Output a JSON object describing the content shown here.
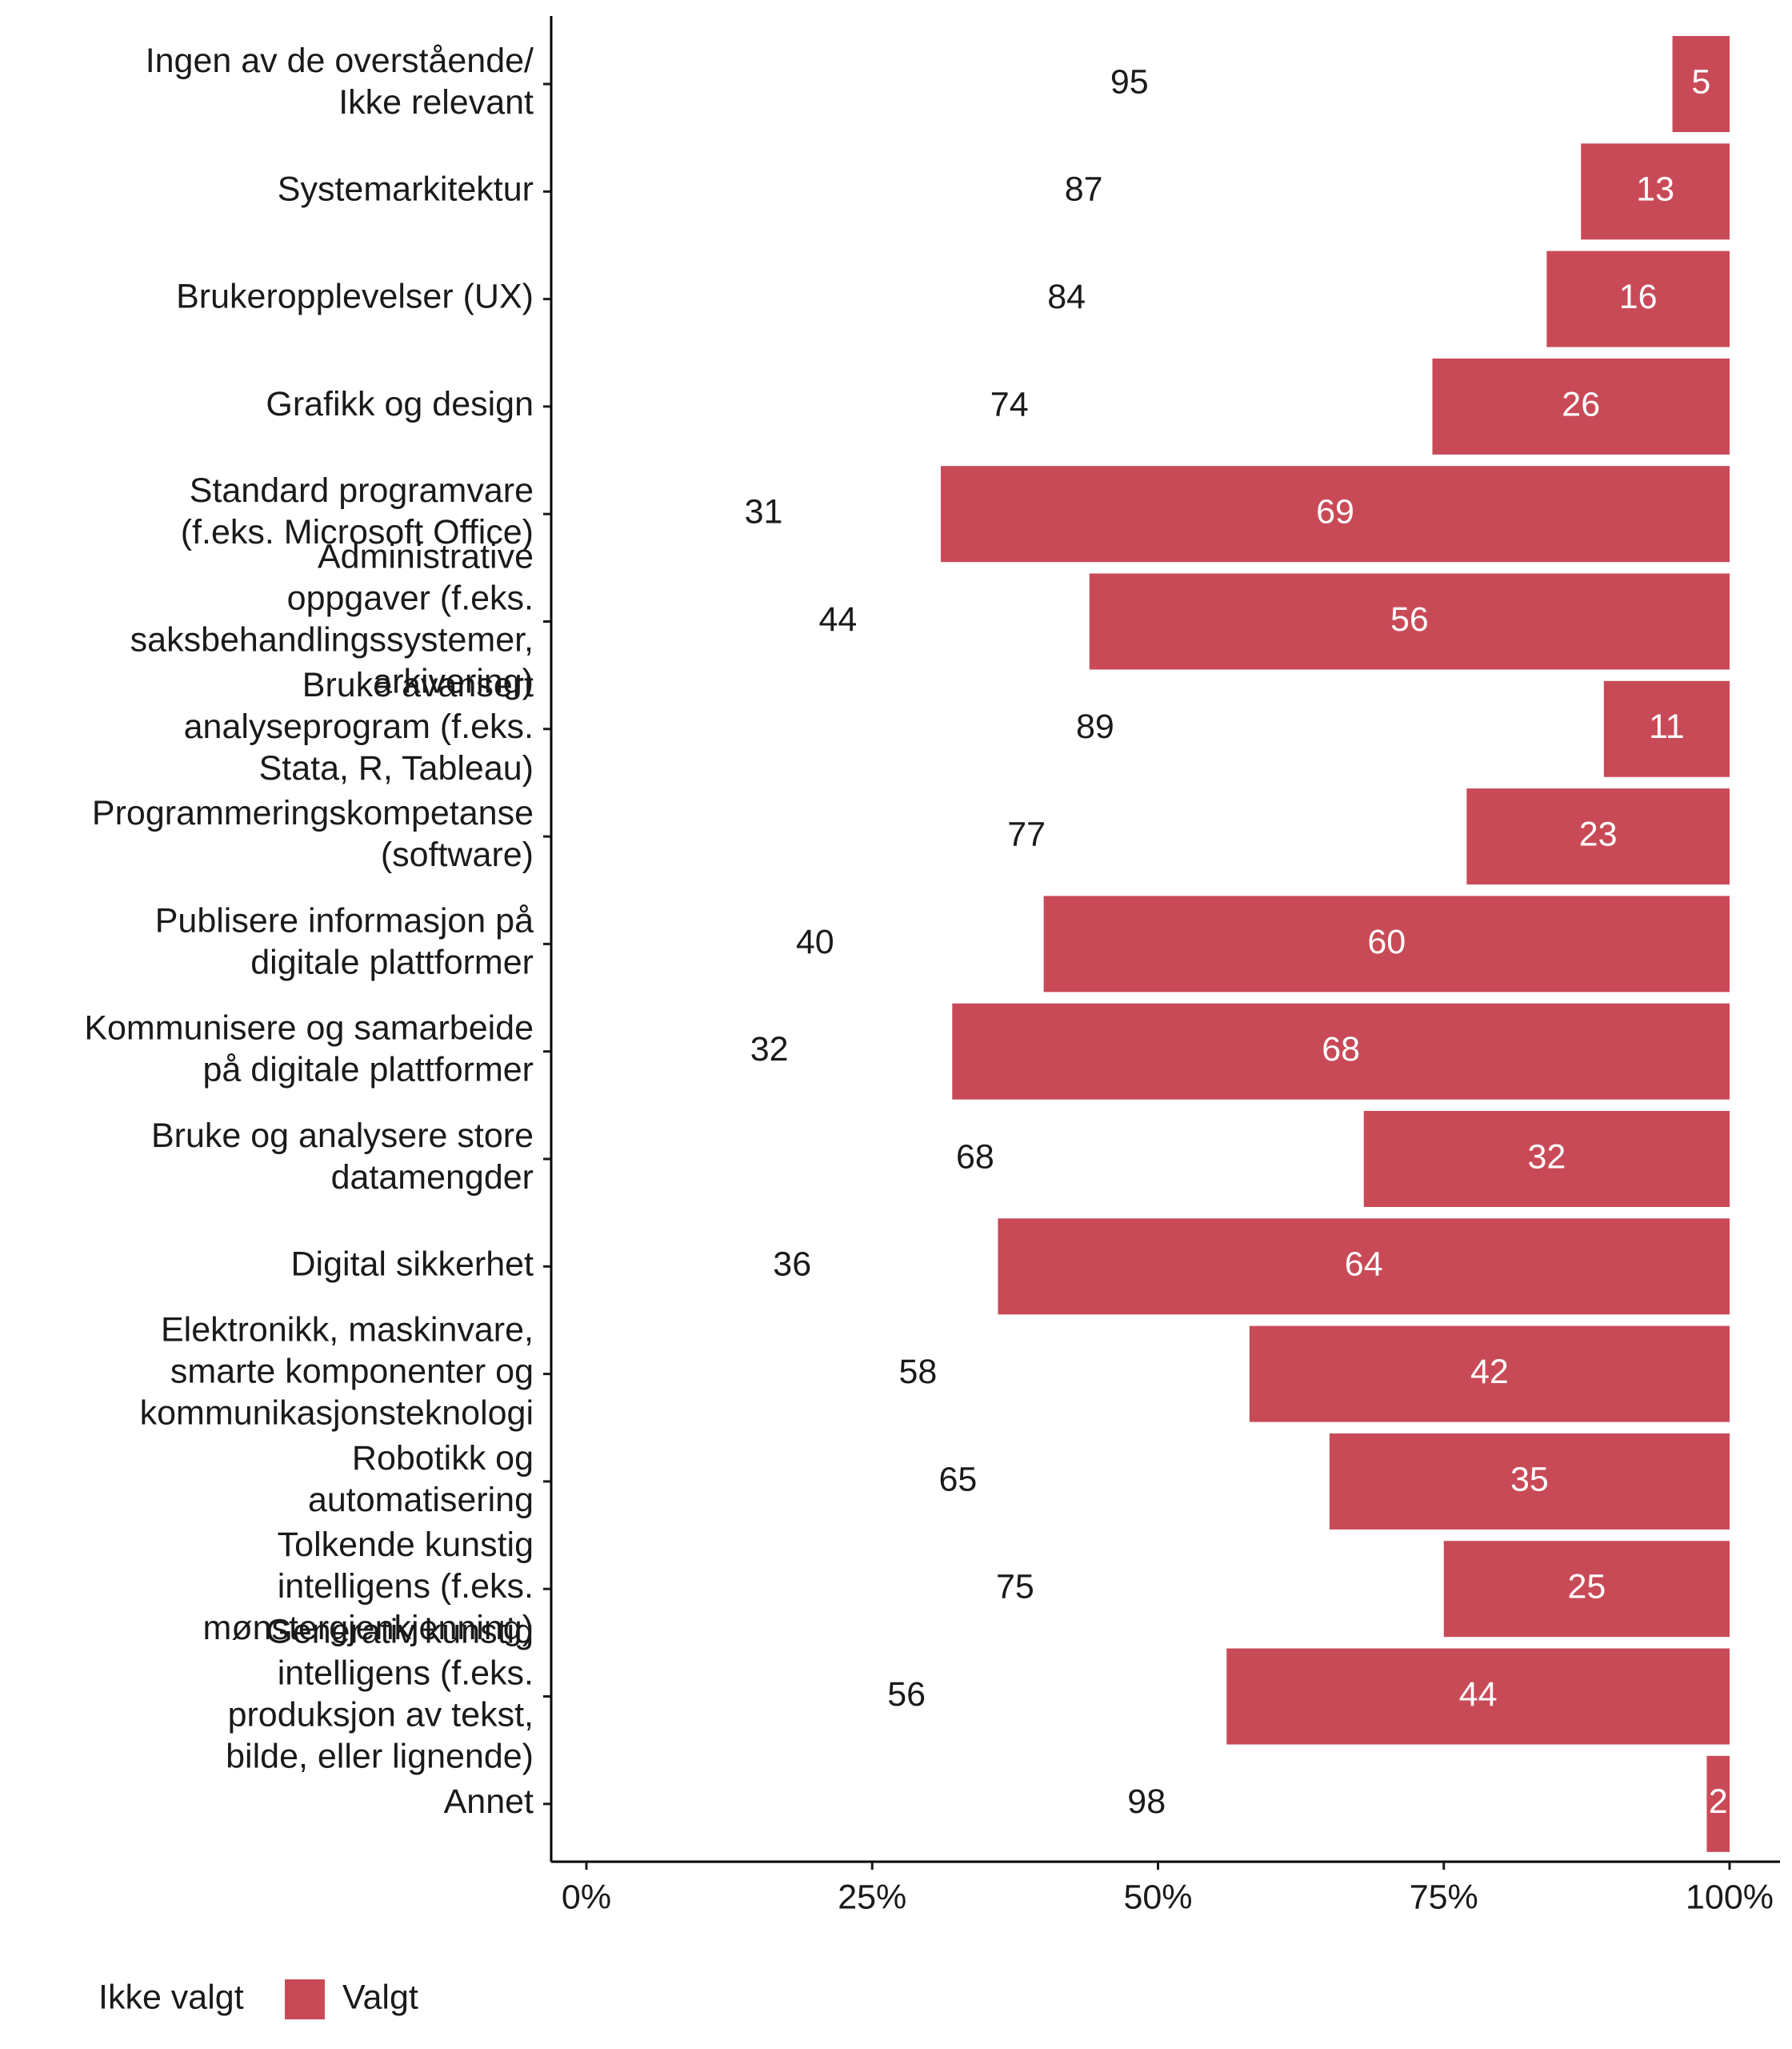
{
  "chart_data": {
    "type": "stacked_bar_horizontal",
    "categories": [
      "Ingen av de overstående/\nIkke relevant",
      "Systemarkitektur",
      "Brukeropplevelser (UX)",
      "Grafikk og design",
      "Standard programvare\n(f.eks. Microsoft Office)",
      "Administrative\noppgaver (f.eks.\nsaksbehandlingssystemer,\narkivering)",
      "Bruke avansert\nanalyseprogram (f.eks.\nStata, R, Tableau)",
      "Programmeringskompetanse\n(software)",
      "Publisere informasjon på\ndigitale plattformer",
      "Kommunisere og samarbeide\npå digitale plattformer",
      "Bruke og analysere store\ndatamengder",
      "Digital sikkerhet",
      "Elektronikk, maskinvare,\nsmarte komponenter og\nkommunikasjonsteknologi",
      "Robotikk og\nautomatisering",
      "Tolkende kunstig\nintelligens (f.eks.\nmønstergjenkjenning)",
      "Generativ kunstig\nintelligens (f.eks.\nproduksjon av tekst,\nbilde, eller lignende)",
      "Annet"
    ],
    "series": [
      {
        "name": "Ikke valgt",
        "color": "#ffffff",
        "label_color": "#1a1a1a",
        "values": [
          95,
          87,
          84,
          74,
          31,
          44,
          89,
          77,
          40,
          32,
          68,
          36,
          58,
          65,
          75,
          56,
          98
        ]
      },
      {
        "name": "Valgt",
        "color": "#c94a57",
        "label_color": "#ffffff",
        "values": [
          5,
          13,
          16,
          26,
          69,
          56,
          11,
          23,
          60,
          68,
          32,
          64,
          42,
          35,
          25,
          44,
          2
        ]
      }
    ],
    "xlim": [
      0,
      100
    ],
    "xticks": [
      {
        "value": 0,
        "label": "0%"
      },
      {
        "value": 25,
        "label": "25%"
      },
      {
        "value": 50,
        "label": "50%"
      },
      {
        "value": 75,
        "label": "75%"
      },
      {
        "value": 100,
        "label": "100%"
      }
    ]
  }
}
